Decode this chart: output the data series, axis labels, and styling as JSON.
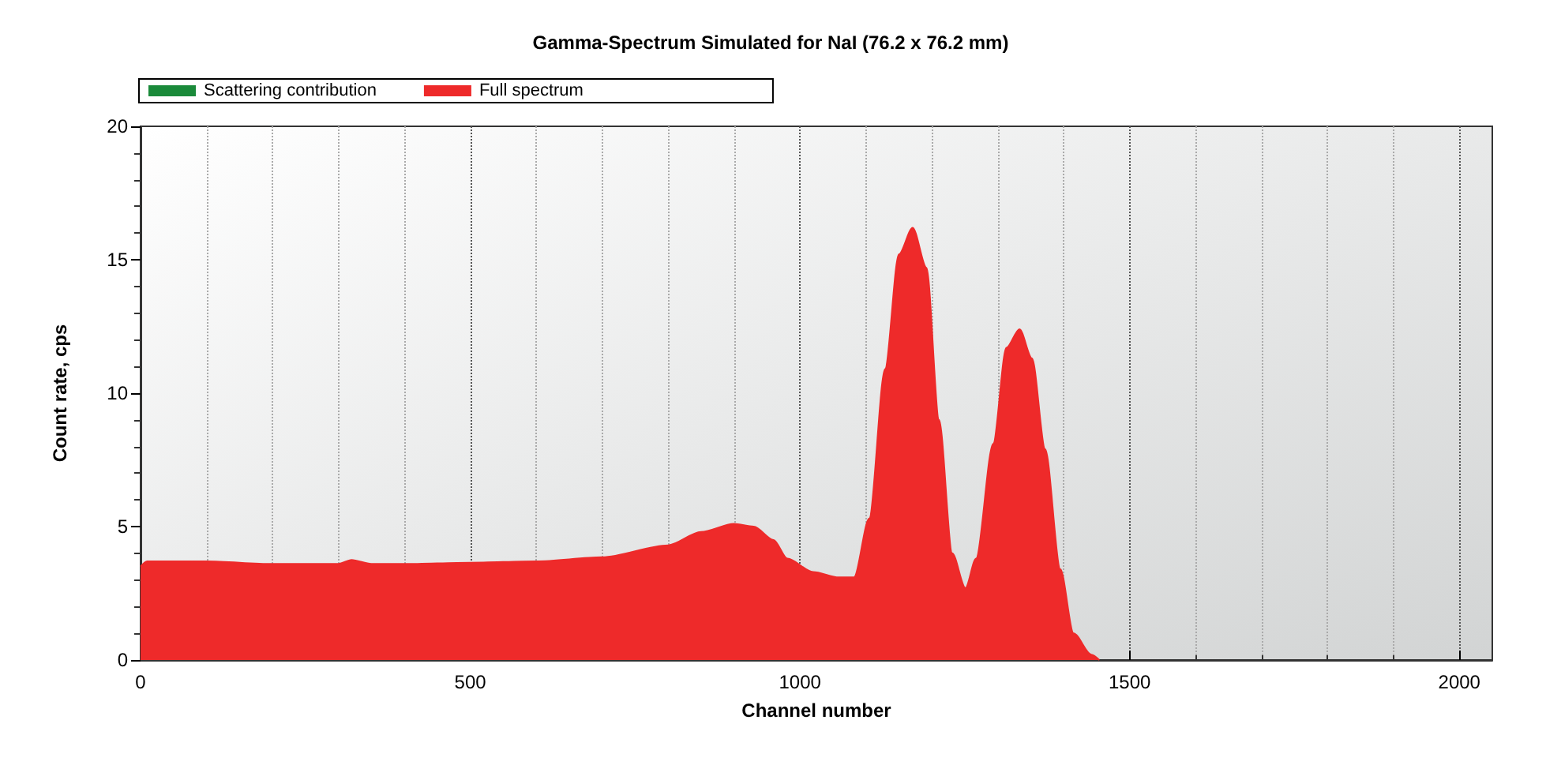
{
  "chart_data": {
    "type": "area",
    "title": "Gamma-Spectrum Simulated for NaI (76.2 x 76.2 mm)",
    "xlabel": "Channel number",
    "ylabel": "Count rate, cps",
    "x": [
      0,
      10,
      100,
      200,
      300,
      320,
      350,
      400,
      500,
      600,
      700,
      800,
      850,
      900,
      930,
      960,
      981,
      1020,
      1059,
      1082,
      1105,
      1129,
      1150,
      1171,
      1192,
      1211,
      1231,
      1251,
      1267,
      1293,
      1313,
      1333,
      1352,
      1372,
      1395,
      1415,
      1442,
      1454
    ],
    "series": [
      {
        "name": "Scattering contribution",
        "color": "#1a8a3a",
        "values": [
          null,
          null,
          null,
          null,
          null,
          null,
          null,
          null,
          null,
          null,
          null,
          null,
          null,
          null,
          null,
          null,
          null,
          null,
          null,
          null,
          null,
          null,
          null,
          null,
          null,
          null,
          null,
          null,
          null,
          null,
          null,
          null,
          null,
          null,
          null,
          null,
          null,
          null
        ]
      },
      {
        "name": "Full spectrum",
        "color": "#ee2a2a",
        "values": [
          3.5,
          3.7,
          3.7,
          3.6,
          3.6,
          3.75,
          3.6,
          3.6,
          3.65,
          3.7,
          3.85,
          4.3,
          4.8,
          5.1,
          5.0,
          4.5,
          3.8,
          3.3,
          3.1,
          3.1,
          5.3,
          10.9,
          15.2,
          16.2,
          14.7,
          9.0,
          4.0,
          2.7,
          3.8,
          8.1,
          11.7,
          12.4,
          11.3,
          7.9,
          3.4,
          1.0,
          0.2,
          0
        ]
      }
    ],
    "xlim": [
      0,
      2050
    ],
    "xticks": [
      0,
      500,
      1000,
      1500,
      2000
    ],
    "ylim": [
      0,
      20
    ],
    "yticks": [
      0,
      5,
      10,
      15,
      20
    ],
    "grid": "x",
    "legend": "top left",
    "marker": "none"
  }
}
